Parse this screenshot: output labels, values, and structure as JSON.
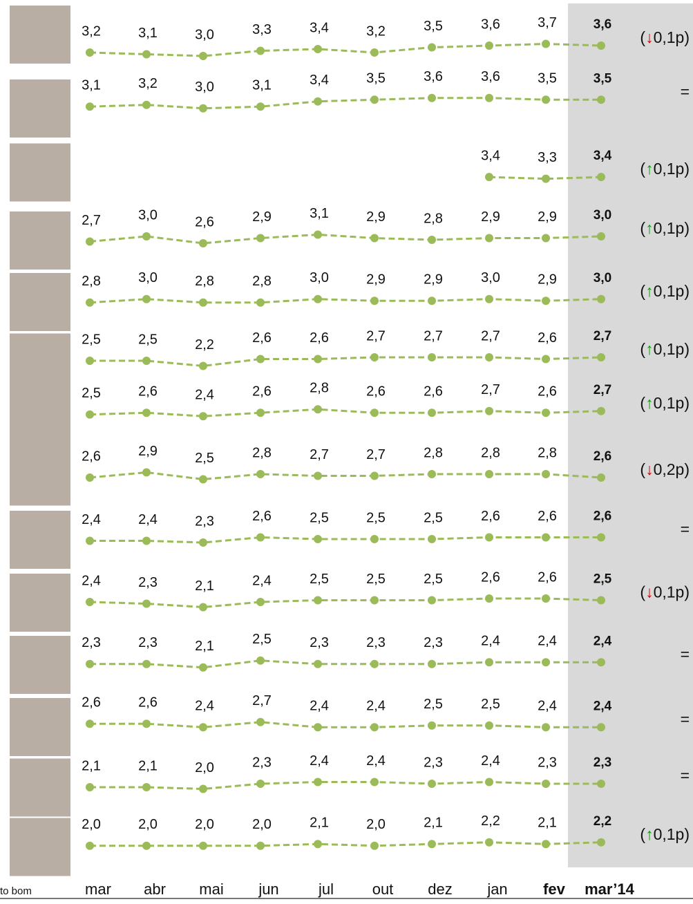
{
  "chart_data": {
    "type": "line",
    "color": "#9bbb59",
    "change_colors": {
      "up": "#00a000",
      "down": "#e00000"
    },
    "categories": [
      "mar",
      "abr",
      "mai",
      "jun",
      "jul",
      "out",
      "dez",
      "jan",
      "fev",
      "mar’14"
    ],
    "footnote": "to bom",
    "series": [
      {
        "values": [
          3.2,
          3.1,
          3.0,
          3.3,
          3.4,
          3.2,
          3.5,
          3.6,
          3.7,
          3.6
        ],
        "value_labels": [
          "3,2",
          "3,1",
          "3,0",
          "3,3",
          "3,4",
          "3,2",
          "3,5",
          "3,6",
          "3,7",
          "3,6"
        ],
        "change": [
          "(",
          "↓",
          "0,1p)"
        ],
        "change_dir": "down"
      },
      {
        "values": [
          3.1,
          3.2,
          3.0,
          3.1,
          3.4,
          3.5,
          3.6,
          3.6,
          3.5,
          3.5
        ],
        "value_labels": [
          "3,1",
          "3,2",
          "3,0",
          "3,1",
          "3,4",
          "3,5",
          "3,6",
          "3,6",
          "3,5",
          "3,5"
        ],
        "change": [
          "="
        ]
      },
      {
        "values": [
          null,
          null,
          null,
          null,
          null,
          null,
          null,
          3.4,
          3.3,
          3.4
        ],
        "value_labels": [
          null,
          null,
          null,
          null,
          null,
          null,
          null,
          "3,4",
          "3,3",
          "3,4"
        ],
        "change": [
          "(",
          "↑",
          "0,1p)"
        ],
        "change_dir": "up"
      },
      {
        "values": [
          2.7,
          3.0,
          2.6,
          2.9,
          3.1,
          2.9,
          2.8,
          2.9,
          2.9,
          3.0
        ],
        "value_labels": [
          "2,7",
          "3,0",
          "2,6",
          "2,9",
          "3,1",
          "2,9",
          "2,8",
          "2,9",
          "2,9",
          "3,0"
        ],
        "change": [
          "(",
          "↑",
          "0,1p)"
        ],
        "change_dir": "up"
      },
      {
        "values": [
          2.8,
          3.0,
          2.8,
          2.8,
          3.0,
          2.9,
          2.9,
          3.0,
          2.9,
          3.0
        ],
        "value_labels": [
          "2,8",
          "3,0",
          "2,8",
          "2,8",
          "3,0",
          "2,9",
          "2,9",
          "3,0",
          "2,9",
          "3,0"
        ],
        "change": [
          "(",
          "↑",
          "0,1p)"
        ],
        "change_dir": "up"
      },
      {
        "values": [
          2.5,
          2.5,
          2.2,
          2.6,
          2.6,
          2.7,
          2.7,
          2.7,
          2.6,
          2.7
        ],
        "value_labels": [
          "2,5",
          "2,5",
          "2,2",
          "2,6",
          "2,6",
          "2,7",
          "2,7",
          "2,7",
          "2,6",
          "2,7"
        ],
        "change": [
          "(",
          "↑",
          "0,1p)"
        ],
        "change_dir": "up"
      },
      {
        "values": [
          2.5,
          2.6,
          2.4,
          2.6,
          2.8,
          2.6,
          2.6,
          2.7,
          2.6,
          2.7
        ],
        "value_labels": [
          "2,5",
          "2,6",
          "2,4",
          "2,6",
          "2,8",
          "2,6",
          "2,6",
          "2,7",
          "2,6",
          "2,7"
        ],
        "change": [
          "(",
          "↑",
          "0,1p)"
        ],
        "change_dir": "up"
      },
      {
        "values": [
          2.6,
          2.9,
          2.5,
          2.8,
          2.7,
          2.7,
          2.8,
          2.8,
          2.8,
          2.6
        ],
        "value_labels": [
          "2,6",
          "2,9",
          "2,5",
          "2,8",
          "2,7",
          "2,7",
          "2,8",
          "2,8",
          "2,8",
          "2,6"
        ],
        "change": [
          "(",
          "↓",
          "0,2p)"
        ],
        "change_dir": "down"
      },
      {
        "values": [
          2.4,
          2.4,
          2.3,
          2.6,
          2.5,
          2.5,
          2.5,
          2.6,
          2.6,
          2.6
        ],
        "value_labels": [
          "2,4",
          "2,4",
          "2,3",
          "2,6",
          "2,5",
          "2,5",
          "2,5",
          "2,6",
          "2,6",
          "2,6"
        ],
        "change": [
          "="
        ]
      },
      {
        "values": [
          2.4,
          2.3,
          2.1,
          2.4,
          2.5,
          2.5,
          2.5,
          2.6,
          2.6,
          2.5
        ],
        "value_labels": [
          "2,4",
          "2,3",
          "2,1",
          "2,4",
          "2,5",
          "2,5",
          "2,5",
          "2,6",
          "2,6",
          "2,5"
        ],
        "change": [
          "(",
          "↓",
          "0,1p)"
        ],
        "change_dir": "down"
      },
      {
        "values": [
          2.3,
          2.3,
          2.1,
          2.5,
          2.3,
          2.3,
          2.3,
          2.4,
          2.4,
          2.4
        ],
        "value_labels": [
          "2,3",
          "2,3",
          "2,1",
          "2,5",
          "2,3",
          "2,3",
          "2,3",
          "2,4",
          "2,4",
          "2,4"
        ],
        "change": [
          "="
        ]
      },
      {
        "values": [
          2.6,
          2.6,
          2.4,
          2.7,
          2.4,
          2.4,
          2.5,
          2.5,
          2.4,
          2.4
        ],
        "value_labels": [
          "2,6",
          "2,6",
          "2,4",
          "2,7",
          "2,4",
          "2,4",
          "2,5",
          "2,5",
          "2,4",
          "2,4"
        ],
        "change": [
          "="
        ]
      },
      {
        "values": [
          2.1,
          2.1,
          2.0,
          2.3,
          2.4,
          2.4,
          2.3,
          2.4,
          2.3,
          2.3
        ],
        "value_labels": [
          "2,1",
          "2,1",
          "2,0",
          "2,3",
          "2,4",
          "2,4",
          "2,3",
          "2,4",
          "2,3",
          "2,3"
        ],
        "change": [
          "="
        ]
      },
      {
        "values": [
          2.0,
          2.0,
          2.0,
          2.0,
          2.1,
          2.0,
          2.1,
          2.2,
          2.1,
          2.2
        ],
        "value_labels": [
          "2,0",
          "2,0",
          "2,0",
          "2,0",
          "2,1",
          "2,0",
          "2,1",
          "2,2",
          "2,1",
          "2,2"
        ],
        "change": [
          "(",
          "↑",
          "0,1p)"
        ],
        "change_dir": "up"
      }
    ]
  }
}
